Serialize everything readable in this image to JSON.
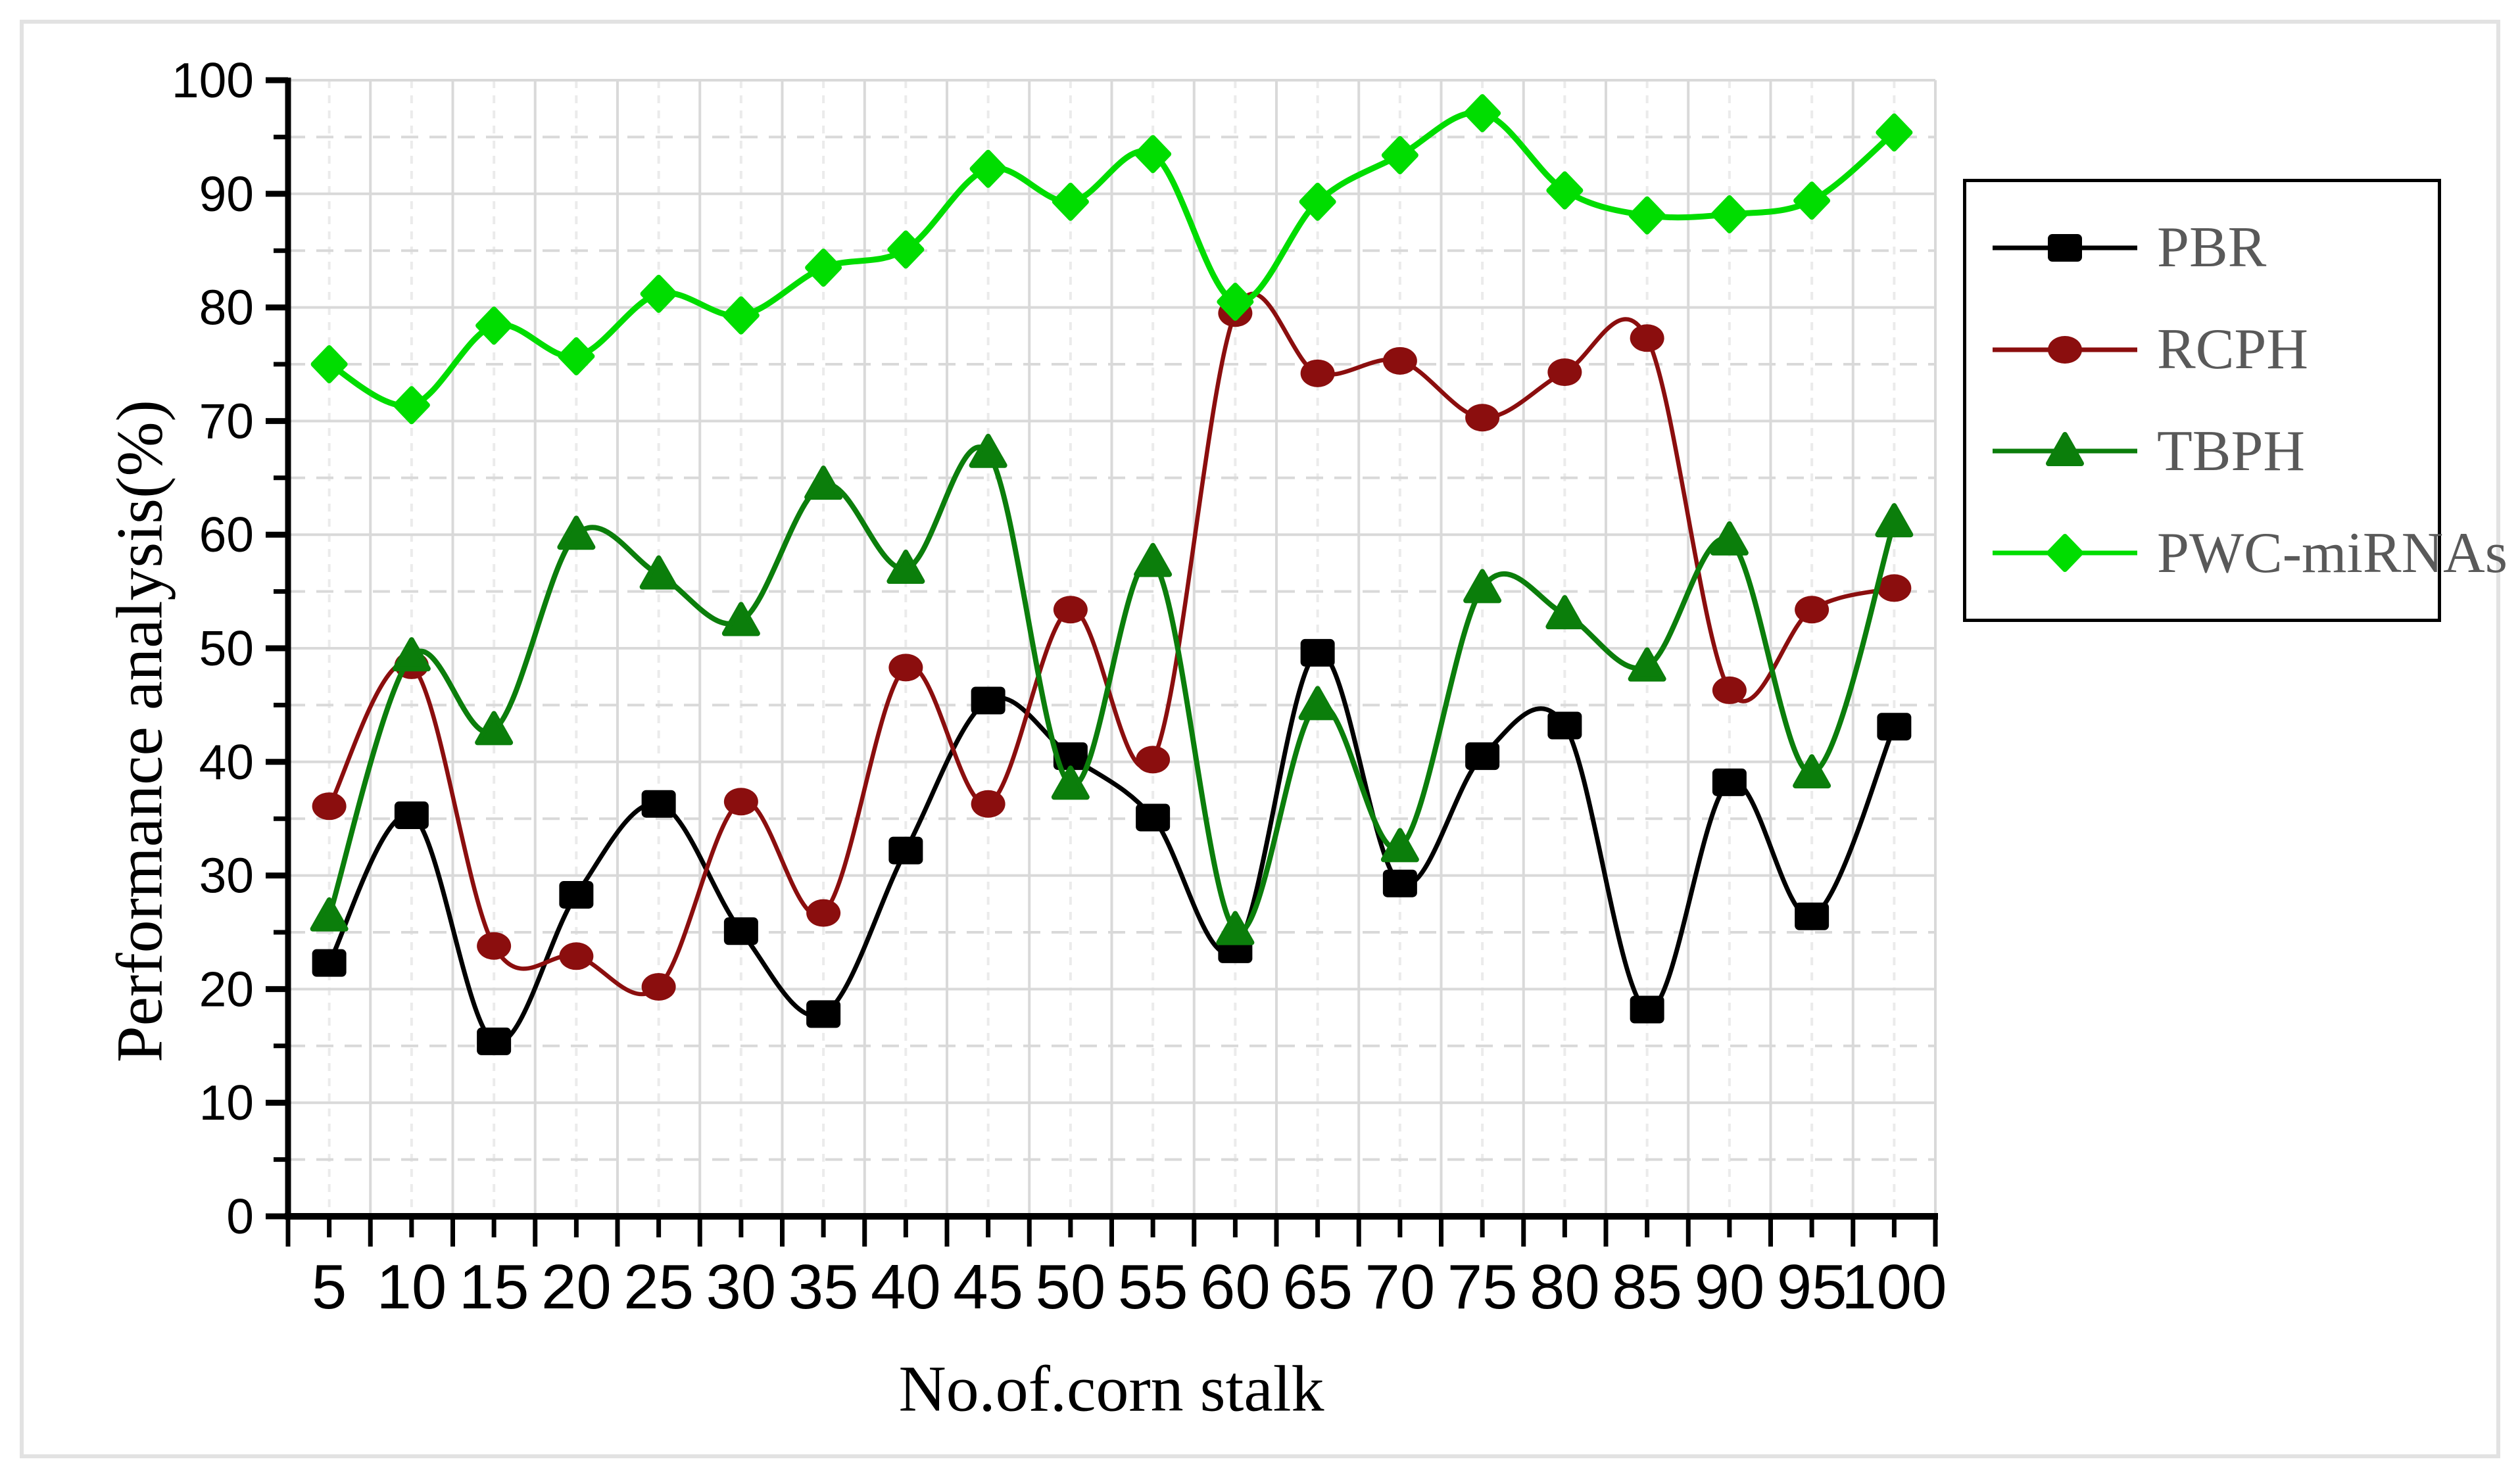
{
  "chart_data": {
    "type": "line",
    "title": "",
    "xlabel": "No.of.corn stalk",
    "ylabel": "Performance analysis(%)",
    "x": [
      5,
      10,
      15,
      20,
      25,
      30,
      35,
      40,
      45,
      50,
      55,
      60,
      65,
      70,
      75,
      80,
      85,
      90,
      95,
      100
    ],
    "ylim": [
      0,
      100
    ],
    "yticks": [
      0,
      10,
      20,
      30,
      40,
      50,
      60,
      70,
      80,
      90,
      100
    ],
    "y_minor_step": 5,
    "grid": "on",
    "legend_position": "right",
    "smooth_lines": true,
    "series": [
      {
        "name": "PBR",
        "color": "#000000",
        "marker": "square",
        "values": [
          22.3,
          35.3,
          15.4,
          28.3,
          36.3,
          25.1,
          17.8,
          32.2,
          45.4,
          40.5,
          35.1,
          23.5,
          49.6,
          29.3,
          40.5,
          43.2,
          18.2,
          38.2,
          26.4,
          43.1
        ]
      },
      {
        "name": "RCPH",
        "color": "#8b0e0e",
        "marker": "circle",
        "values": [
          36.1,
          48.5,
          23.8,
          22.9,
          20.2,
          36.5,
          26.7,
          48.3,
          36.3,
          53.4,
          40.2,
          79.5,
          74.2,
          75.3,
          70.3,
          74.3,
          77.3,
          46.3,
          53.4,
          55.3
        ]
      },
      {
        "name": "TBPH",
        "color": "#0b7e0b",
        "marker": "triangle",
        "values": [
          26.4,
          49.3,
          42.8,
          60.0,
          56.5,
          52.4,
          64.4,
          57.0,
          67.2,
          38.0,
          57.6,
          25.2,
          45.0,
          32.5,
          55.3,
          53.0,
          48.4,
          59.5,
          39.0,
          61.1
        ]
      },
      {
        "name": "PWC-miRNAs",
        "color": "#00dd00",
        "marker": "diamond",
        "values": [
          75.0,
          71.4,
          78.4,
          75.7,
          81.2,
          79.3,
          83.5,
          85.1,
          92.2,
          89.3,
          93.5,
          80.5,
          89.3,
          93.4,
          97.1,
          90.3,
          88.1,
          88.2,
          89.4,
          95.4
        ]
      }
    ],
    "colors": {
      "grid_major": "#d9d9d9",
      "grid_minor_dashed": "#d9d9d9",
      "grid_vertical_dashed": "#ebebeb",
      "axis": "#000000",
      "tick_label": "#000000",
      "legend_text": "#595959",
      "frame_border": "#e2e2e2"
    }
  }
}
